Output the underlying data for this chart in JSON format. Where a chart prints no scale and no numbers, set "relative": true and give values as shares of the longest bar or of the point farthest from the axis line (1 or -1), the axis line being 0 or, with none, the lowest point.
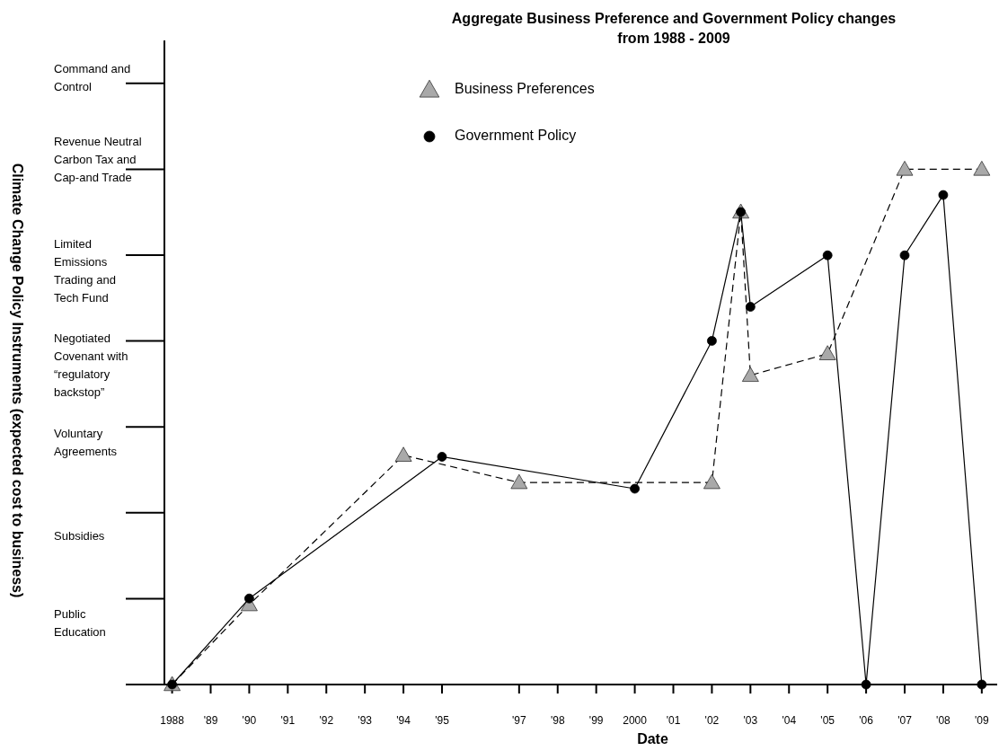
{
  "chart_data": {
    "type": "line",
    "title": "Aggregate Business Preference and Government Policy changes from 1988 - 2009",
    "xlabel": "Date",
    "relative": true,
    "annotations": [
      "Climate Change Policy Instruments (expected cost to business)",
      "Command and Control",
      "Revenue Neutral Carbon Tax and Cap-and Trade",
      "Limited Emissions Trading and Tech Fund",
      "Negotiated Covenant with “regulatory backstop”",
      "Voluntary Agreements",
      "Subsidies",
      "Public Education"
    ],
    "xlim": [
      1987.8,
      2009.4
    ],
    "xticks": [
      {
        "value": 1988,
        "label": "1988"
      },
      {
        "value": 1989,
        "label": "'89"
      },
      {
        "value": 1990,
        "label": "'90"
      },
      {
        "value": 1991,
        "label": "'91"
      },
      {
        "value": 1992,
        "label": "'92"
      },
      {
        "value": 1993,
        "label": "'93"
      },
      {
        "value": 1994,
        "label": "'94"
      },
      {
        "value": 1995,
        "label": "'95"
      },
      {
        "value": 1997,
        "label": "'97"
      },
      {
        "value": 1998,
        "label": "'98"
      },
      {
        "value": 1999,
        "label": "'99"
      },
      {
        "value": 2000,
        "label": "2000"
      },
      {
        "value": 2001,
        "label": "'01"
      },
      {
        "value": 2002,
        "label": "'02"
      },
      {
        "value": 2003,
        "label": "'03"
      },
      {
        "value": 2004,
        "label": "'04"
      },
      {
        "value": 2005,
        "label": "'05"
      },
      {
        "value": 2006,
        "label": "'06"
      },
      {
        "value": 2007,
        "label": "'07"
      },
      {
        "value": 2008,
        "label": "'08"
      },
      {
        "value": 2009,
        "label": "'09"
      }
    ],
    "legend": "top left",
    "series": [
      {
        "name": "Business Preferences",
        "color": "#a9a9a9",
        "marker": "triangle",
        "line_style": "dashed",
        "x": [
          1988,
          1990,
          1994,
          1997,
          2002,
          2002.75,
          2003,
          2005,
          2007,
          2009
        ],
        "values": [
          0,
          0.155,
          0.445,
          0.392,
          0.392,
          0.917,
          0.6,
          0.642,
          1,
          1
        ]
      },
      {
        "name": "Government Policy",
        "color": "#000000",
        "marker": "circle",
        "line_style": "solid",
        "x": [
          1988,
          1990,
          1995,
          2000,
          2002,
          2002.75,
          2003,
          2005,
          2006,
          2007,
          2008,
          2009
        ],
        "values": [
          0,
          0.167,
          0.442,
          0.38,
          0.667,
          0.917,
          0.733,
          0.833,
          0,
          0.833,
          0.95,
          0
        ]
      }
    ]
  }
}
